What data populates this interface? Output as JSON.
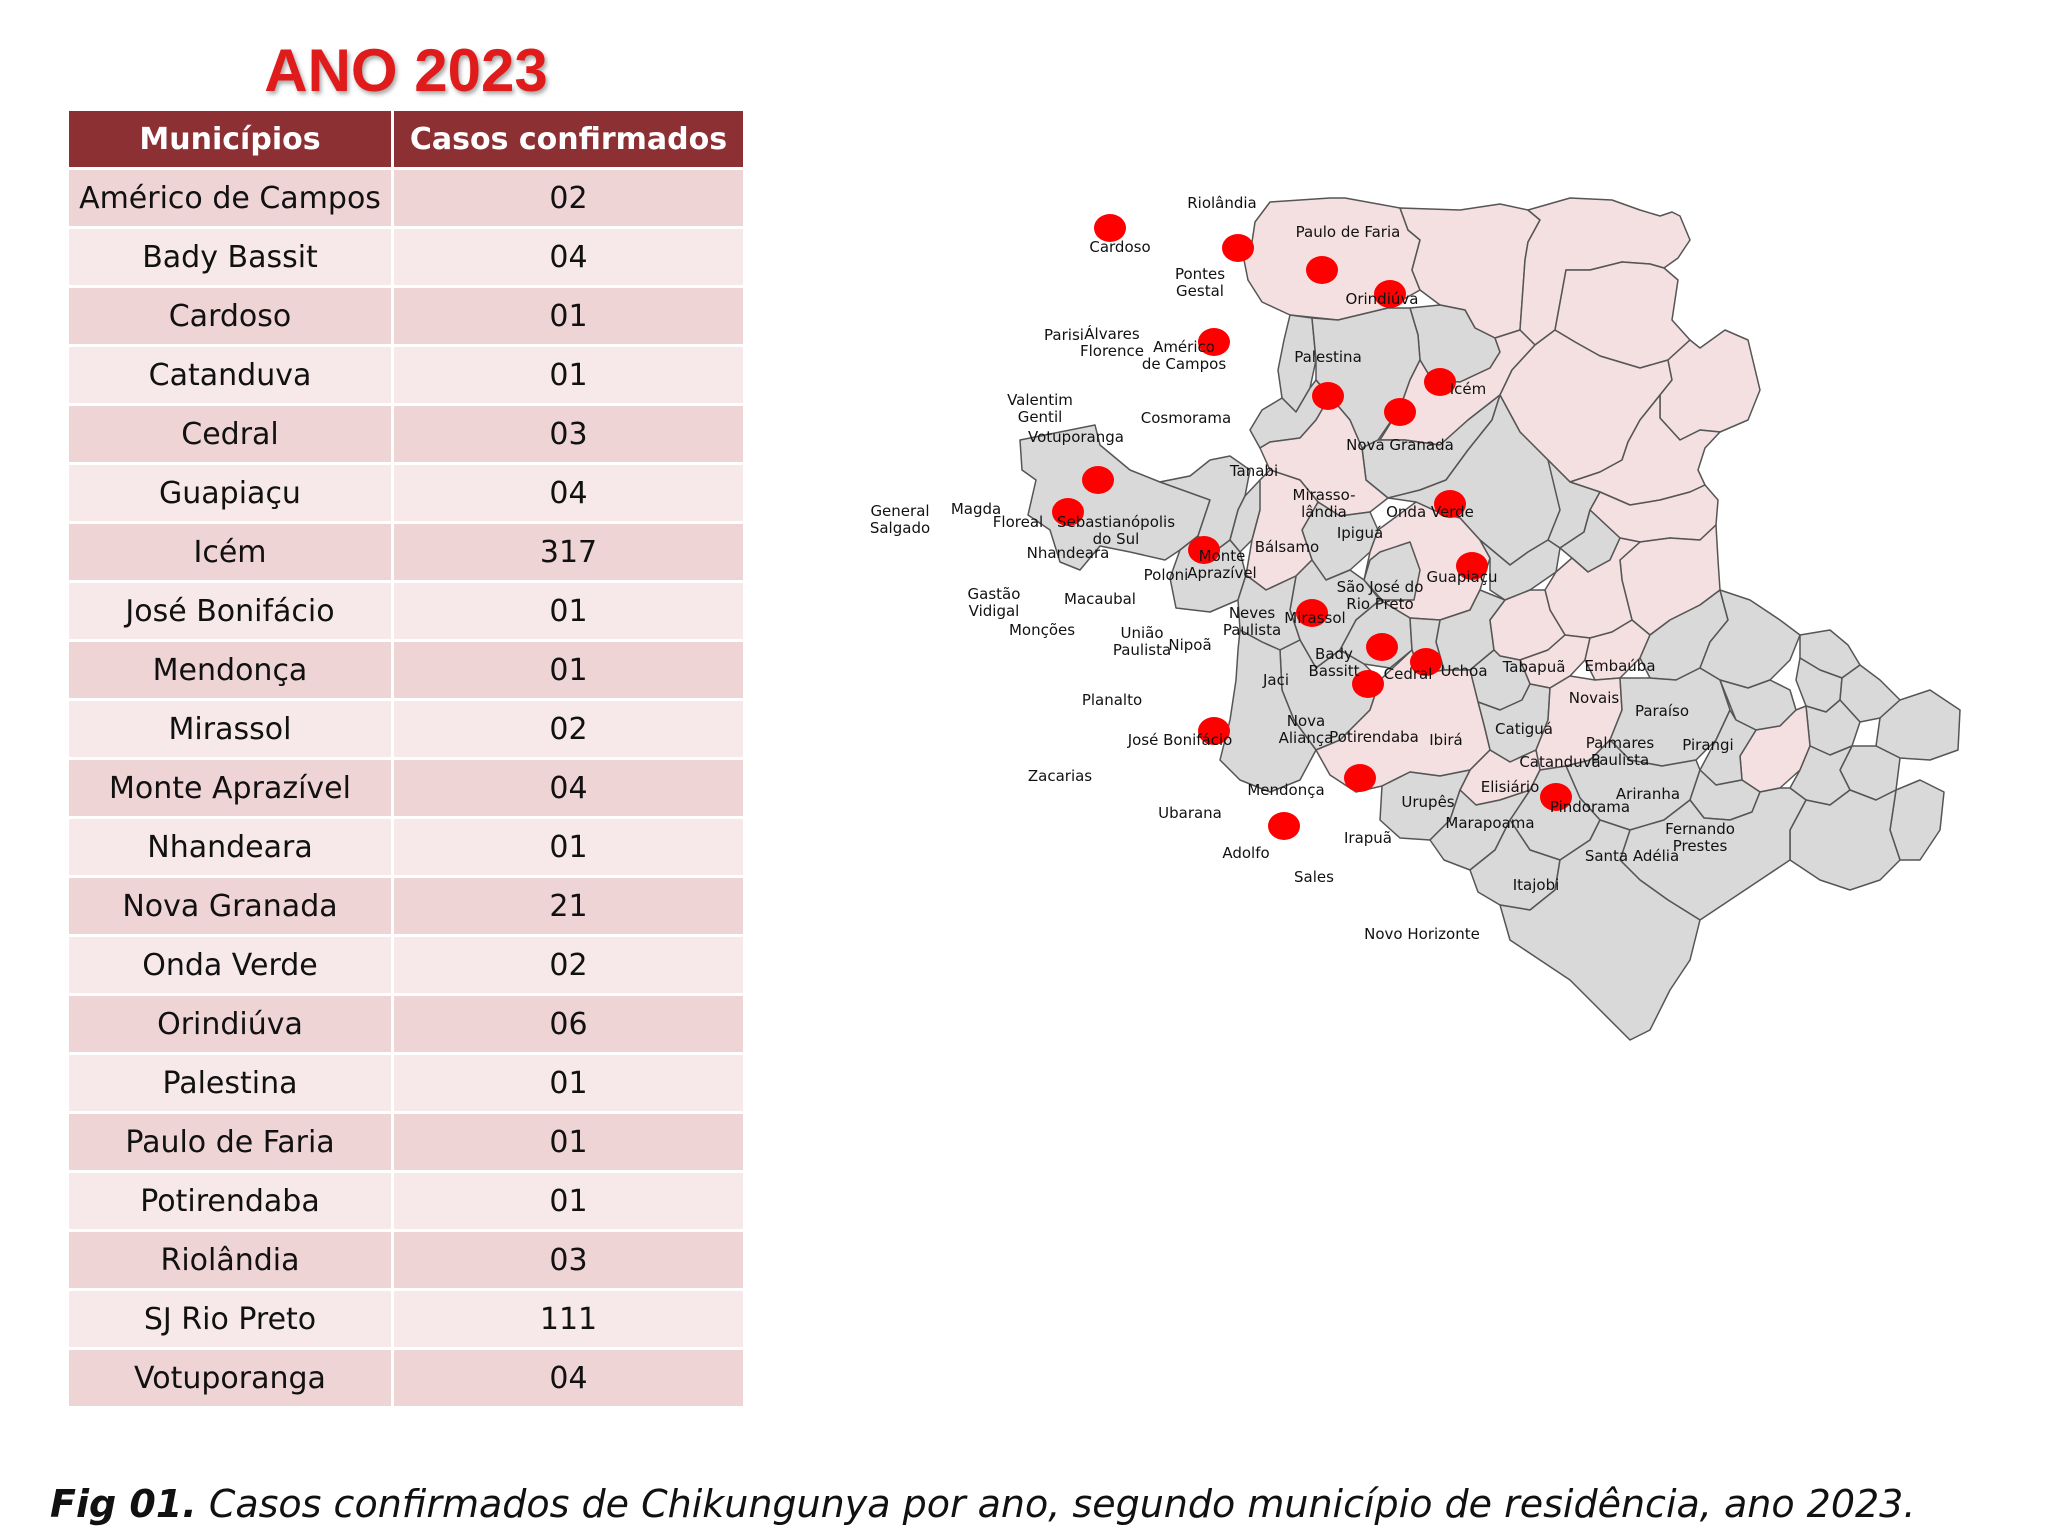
{
  "title": "ANO 2023",
  "table": {
    "headers": [
      "Municípios",
      "Casos confirmados"
    ],
    "rows": [
      {
        "municipio": "Américo de Campos",
        "casos": "02"
      },
      {
        "municipio": "Bady Bassit",
        "casos": "04"
      },
      {
        "municipio": "Cardoso",
        "casos": "01"
      },
      {
        "municipio": "Catanduva",
        "casos": "01"
      },
      {
        "municipio": "Cedral",
        "casos": "03"
      },
      {
        "municipio": "Guapiaçu",
        "casos": "04"
      },
      {
        "municipio": "Icém",
        "casos": "317"
      },
      {
        "municipio": "José Bonifácio",
        "casos": "01"
      },
      {
        "municipio": "Mendonça",
        "casos": "01"
      },
      {
        "municipio": "Mirassol",
        "casos": "02"
      },
      {
        "municipio": "Monte Aprazível",
        "casos": "04"
      },
      {
        "municipio": "Nhandeara",
        "casos": "01"
      },
      {
        "municipio": "Nova Granada",
        "casos": "21"
      },
      {
        "municipio": "Onda Verde",
        "casos": "02"
      },
      {
        "municipio": "Orindiúva",
        "casos": "06"
      },
      {
        "municipio": "Palestina",
        "casos": "01"
      },
      {
        "municipio": "Paulo de Faria",
        "casos": "01"
      },
      {
        "municipio": "Potirendaba",
        "casos": "01"
      },
      {
        "municipio": "Riolândia",
        "casos": "03"
      },
      {
        "municipio": "SJ Rio Preto",
        "casos": "111"
      },
      {
        "municipio": "Votuporanga",
        "casos": "04"
      }
    ]
  },
  "map": {
    "colors": {
      "affected_fill": "#f4dfe1",
      "unaffected_fill": "#d9d9d9",
      "border": "#555555",
      "marker": "#ff0000"
    },
    "labels": {
      "cardoso": "Cardoso",
      "riolandia": "Riolândia",
      "paulo_de_faria": "Paulo de Faria",
      "pontes_gestal": [
        "Pontes",
        "Gestal"
      ],
      "orindiuva": "Orindiúva",
      "parisi": "Parisi",
      "alvares_florence": [
        "Álvares",
        "Florence"
      ],
      "americo_de_campos": [
        "Américo",
        "de Campos"
      ],
      "palestina": "Palestina",
      "icem": "Icém",
      "valentim_gentil": [
        "Valentim",
        "Gentil"
      ],
      "cosmorama": "Cosmorama",
      "votuporanga": "Votuporanga",
      "nova_granada": "Nova Granada",
      "tanabi": "Tanabi",
      "general_salgado": [
        "General",
        "Salgado"
      ],
      "magda": "Magda",
      "floreal": "Floreal",
      "sebastianopolis": [
        "Sebastianópolis",
        "do Sul"
      ],
      "mirassolandia": [
        "Mirasso-",
        "lândia"
      ],
      "onda_verde": "Onda Verde",
      "ipigua": "Ipiguá",
      "nhandeara": "Nhandeara",
      "monte_aprazivel": [
        "Monte",
        "Aprazível"
      ],
      "balsamo": "Bálsamo",
      "guapiacu": "Guapiaçu",
      "poloni": "Poloni",
      "sao_jose_rio_preto": [
        "São José do",
        "Rio Preto"
      ],
      "gastao_vidigal": [
        "Gastão",
        "Vidigal"
      ],
      "macaubal": "Macaubal",
      "neves_paulista": [
        "Neves",
        "Paulista"
      ],
      "mirassol": "Mirassol",
      "moncoes": "Monções",
      "uniao_paulista": [
        "União",
        "Paulista"
      ],
      "nipoa": "Nipoã",
      "bady_bassitt": [
        "Bady",
        "Bassitt"
      ],
      "cedral": "Cedral",
      "uchoa": "Uchoa",
      "tabapua": "Tabapuã",
      "embauba": "Embaúba",
      "jaci": "Jaci",
      "planalto": "Planalto",
      "novais": "Novais",
      "paraiso": "Paraíso",
      "nova_alianca": [
        "Nova",
        "Aliança"
      ],
      "potirendaba": "Potirendaba",
      "ibira": "Ibirá",
      "catigua": "Catiguá",
      "jose_bonifacio": "José Bonifácio",
      "palmares_paulista": [
        "Palmares",
        "Paulista"
      ],
      "pirangi": "Pirangi",
      "catanduva": "Catanduva",
      "zacarias": "Zacarias",
      "elisiario": "Elisiário",
      "mendonca": "Mendonça",
      "urupes": "Urupês",
      "ariranha": "Ariranha",
      "pindorama": "Pindorama",
      "ubarana": "Ubarana",
      "marapoama": "Marapoama",
      "fernando_prestes": [
        "Fernando",
        "Prestes"
      ],
      "irapua": "Irapuã",
      "adolfo": "Adolfo",
      "santa_adelia": "Santa Adélia",
      "sales": "Sales",
      "itajobi": "Itajobi",
      "novo_horizonte": "Novo Horizonte"
    }
  },
  "caption": {
    "bold": "Fig 01.",
    "text": " Casos confirmados de Chikungunya por ano, segundo município de residência, ano 2023."
  }
}
